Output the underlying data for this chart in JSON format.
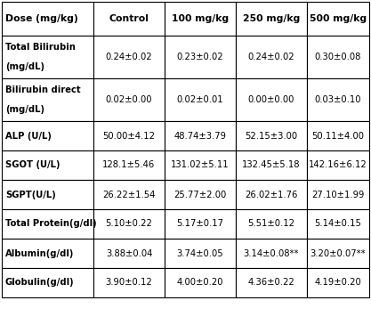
{
  "columns": [
    "Dose (mg/kg)",
    "Control",
    "100 mg/kg",
    "250 mg/kg",
    "500 mg/kg"
  ],
  "rows": [
    {
      "label": "Total Bilirubin\n\n(mg/dL)",
      "label_top": "Total Bilirubin",
      "label_bot": "(mg/dL)",
      "values": [
        "0.24±0.02",
        "0.23±0.02",
        "0.24±0.02",
        "0.30±0.08"
      ],
      "tall": true
    },
    {
      "label": "Bilirubin direct\n\n(mg/dL)",
      "label_top": "Bilirubin direct",
      "label_bot": "(mg/dL)",
      "values": [
        "0.02±0.00",
        "0.02±0.01",
        "0.00±0.00",
        "0.03±0.10"
      ],
      "tall": true
    },
    {
      "label": "ALP (U/L)",
      "label_top": "ALP (U/L)",
      "label_bot": "",
      "values": [
        "50.00±4.12",
        "48.74±3.79",
        "52.15±3.00",
        "50.11±4.00"
      ],
      "tall": false
    },
    {
      "label": "SGOT (U/L)",
      "label_top": "SGOT (U/L)",
      "label_bot": "",
      "values": [
        "128.1±5.46",
        "131.02±5.11",
        "132.45±5.18",
        "142.16±6.12"
      ],
      "tall": false
    },
    {
      "label": "SGPT(U/L)",
      "label_top": "SGPT(U/L)",
      "label_bot": "",
      "values": [
        "26.22±1.54",
        "25.77±2.00",
        "26.02±1.76",
        "27.10±1.99"
      ],
      "tall": false
    },
    {
      "label": "Total Protein(g/dl)",
      "label_top": "Total Protein(g/dl)",
      "label_bot": "",
      "values": [
        "5.10±0.22",
        "5.17±0.17",
        "5.51±0.12",
        "5.14±0.15"
      ],
      "tall": false
    },
    {
      "label": "Albumin(g/dl)",
      "label_top": "Albumin(g/dl)",
      "label_bot": "",
      "values": [
        "3.88±0.04",
        "3.74±0.05",
        "3.14±0.08**",
        "3.20±0.07**"
      ],
      "tall": false
    },
    {
      "label": "Globulin(g/dl)",
      "label_top": "Globulin(g/dl)",
      "label_bot": "",
      "values": [
        "3.90±0.12",
        "4.00±0.20",
        "4.36±0.22",
        "4.19±0.20"
      ],
      "tall": false
    }
  ],
  "background_color": "#ffffff",
  "border_color": "#000000",
  "text_color": "#000000",
  "font_size": 7.2,
  "header_font_size": 7.8
}
